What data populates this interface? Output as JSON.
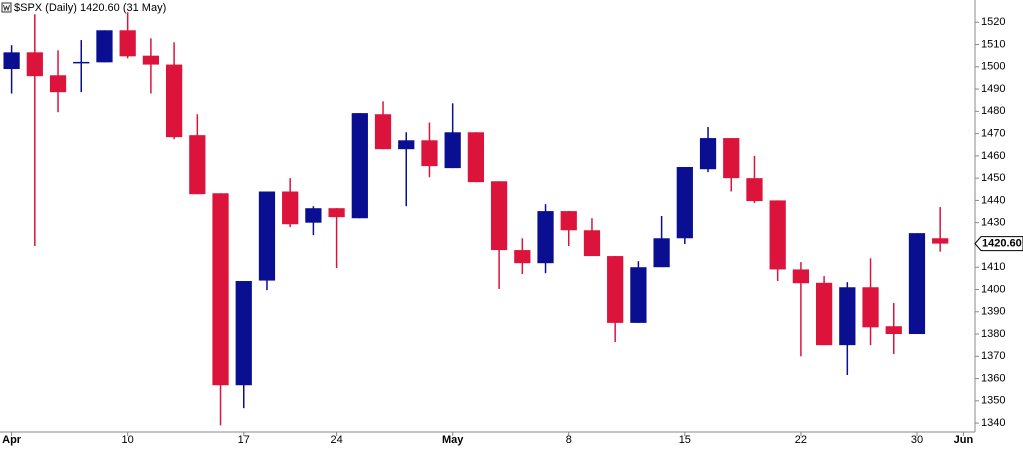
{
  "chart_data": {
    "type": "candlestick",
    "title": "$SPX (Daily) 1420.60 (31 May)",
    "open": [
      1499,
      1506.5,
      1496.2,
      1502,
      1502,
      1516.4,
      1505,
      1501,
      1469.3,
      1443.2,
      1357,
      1404,
      1444,
      1430,
      1436.5,
      1432,
      1478.7,
      1463,
      1467,
      1454.5,
      1470.6,
      1448.6,
      1417.7,
      1411.8,
      1435.2,
      1426.6,
      1415,
      1385,
      1410,
      1423,
      1454,
      1468,
      1450,
      1440,
      1409,
      1403,
      1375,
      1401,
      1383.5,
      1380,
      1423
    ],
    "high": [
      1509.7,
      1523.6,
      1507.4,
      1512,
      1516.4,
      1524.5,
      1512.8,
      1511,
      1478.7,
      1443.2,
      1403.8,
      1444,
      1450,
      1437.4,
      1436.5,
      1479.2,
      1484.5,
      1470.6,
      1475,
      1483.6,
      1470.6,
      1448.6,
      1423,
      1438.3,
      1435.2,
      1432,
      1415,
      1412.7,
      1433,
      1455,
      1473,
      1468,
      1460,
      1440,
      1412.3,
      1406,
      1403.3,
      1414,
      1393.9,
      1425.3,
      1437
    ],
    "low": [
      1488,
      1419.5,
      1479.6,
      1488.6,
      1502,
      1503.8,
      1488,
      1467.5,
      1442.8,
      1339,
      1346.7,
      1399.7,
      1428,
      1424.4,
      1409.6,
      1432,
      1463,
      1437.4,
      1450.4,
      1454.5,
      1448.2,
      1400.2,
      1406.9,
      1407.3,
      1419.5,
      1415,
      1376.4,
      1385,
      1410,
      1420.4,
      1452.7,
      1444,
      1438.8,
      1403.8,
      1370,
      1375,
      1361.6,
      1375,
      1371,
      1380,
      1417
    ],
    "close": [
      1506.5,
      1495.8,
      1488.6,
      1502.2,
      1516.4,
      1504.7,
      1501,
      1468.4,
      1442.8,
      1357,
      1403.8,
      1444,
      1429.3,
      1436.5,
      1432.5,
      1479.2,
      1463,
      1467,
      1455.4,
      1470.6,
      1448.2,
      1417.7,
      1411.8,
      1435.2,
      1426.6,
      1415,
      1385,
      1410,
      1423,
      1455,
      1468,
      1450,
      1439.7,
      1409,
      1402.8,
      1375,
      1401,
      1383,
      1380,
      1425.3,
      1420.6
    ],
    "up_color": "#0a0f91",
    "down_color": "#dc143c",
    "xlim": [
      -0.5,
      41.5
    ],
    "xticks": [
      {
        "value": 0,
        "label": "Apr"
      },
      {
        "value": 5,
        "label": "10"
      },
      {
        "value": 10,
        "label": "17"
      },
      {
        "value": 14,
        "label": "24"
      },
      {
        "value": 19,
        "label": "May"
      },
      {
        "value": 24,
        "label": "8"
      },
      {
        "value": 29,
        "label": "15"
      },
      {
        "value": 34,
        "label": "22"
      },
      {
        "value": 39,
        "label": "30"
      },
      {
        "value": 41,
        "label": "Jun"
      }
    ],
    "ylim": [
      1336,
      1530
    ],
    "yticks": [
      1340,
      1350,
      1360,
      1370,
      1380,
      1390,
      1400,
      1410,
      1420,
      1430,
      1440,
      1450,
      1460,
      1470,
      1480,
      1490,
      1500,
      1510,
      1520
    ],
    "last_price": {
      "value": 1420.6,
      "label": "1420.60"
    }
  }
}
